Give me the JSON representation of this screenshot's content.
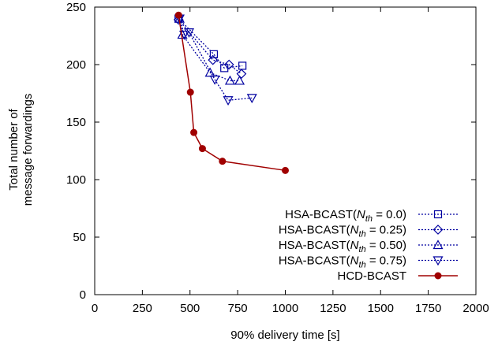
{
  "chart_data": {
    "type": "line",
    "xlabel": "90% delivery time [s]",
    "ylabel_lines": [
      "Total number of",
      "message forwardings"
    ],
    "xlim": [
      0,
      2000
    ],
    "ylim": [
      0,
      250
    ],
    "xticks": [
      0,
      250,
      500,
      750,
      1000,
      1250,
      1500,
      1750,
      2000
    ],
    "yticks": [
      0,
      50,
      100,
      150,
      200,
      250
    ],
    "grid": false,
    "legend_position": "bottom-right",
    "series": [
      {
        "name": "HSA-BCAST(N_th = 0.0)",
        "legend_prefix": "HSA-BCAST(",
        "legend_var": "N",
        "legend_sub": "th",
        "legend_suffix": " = 0.0)",
        "marker": "square",
        "line": "dotted",
        "color": "#0000a0",
        "points": [
          [
            440,
            240
          ],
          [
            625,
            209
          ],
          [
            680,
            197
          ],
          [
            775,
            199
          ]
        ]
      },
      {
        "name": "HSA-BCAST(N_th = 0.25)",
        "legend_prefix": "HSA-BCAST(",
        "legend_var": "N",
        "legend_sub": "th",
        "legend_suffix": " = 0.25)",
        "marker": "diamond",
        "line": "dotted",
        "color": "#0000a0",
        "points": [
          [
            440,
            239
          ],
          [
            620,
            204
          ],
          [
            705,
            200
          ],
          [
            770,
            192
          ]
        ]
      },
      {
        "name": "HSA-BCAST(N_th = 0.50)",
        "legend_prefix": "HSA-BCAST(",
        "legend_var": "N",
        "legend_sub": "th",
        "legend_suffix": " = 0.50)",
        "marker": "triangle-up",
        "line": "dotted",
        "color": "#0000a0",
        "points": [
          [
            445,
            240
          ],
          [
            460,
            226
          ],
          [
            605,
            193
          ],
          [
            710,
            186
          ],
          [
            760,
            186
          ]
        ]
      },
      {
        "name": "HSA-BCAST(N_th = 0.75)",
        "legend_prefix": "HSA-BCAST(",
        "legend_var": "N",
        "legend_sub": "th",
        "legend_suffix": " = 0.75)",
        "marker": "triangle-down",
        "line": "dotted",
        "color": "#0000a0",
        "points": [
          [
            445,
            240
          ],
          [
            470,
            226
          ],
          [
            495,
            228
          ],
          [
            630,
            187
          ],
          [
            700,
            169
          ],
          [
            825,
            171
          ]
        ]
      },
      {
        "name": "HCD-BCAST",
        "legend_prefix": "HCD-BCAST",
        "legend_var": "",
        "legend_sub": "",
        "legend_suffix": "",
        "marker": "circle",
        "line": "solid",
        "color": "#a00000",
        "points": [
          [
            440,
            243
          ],
          [
            502,
            176
          ],
          [
            520,
            141
          ],
          [
            565,
            127
          ],
          [
            670,
            116
          ],
          [
            1000,
            108
          ]
        ]
      }
    ]
  }
}
